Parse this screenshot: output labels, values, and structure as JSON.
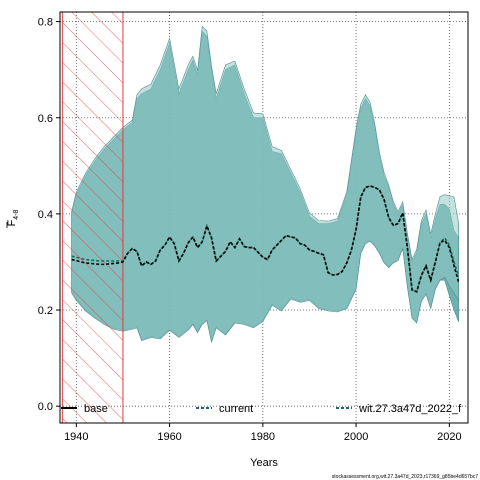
{
  "chart_data": {
    "type": "line",
    "xlabel": "Years",
    "ylabel": "F",
    "ylabel_sub": "4-8",
    "xlim": [
      1936.5,
      2024
    ],
    "ylim": [
      -0.035,
      0.82
    ],
    "x_ticks": [
      1940,
      1960,
      1980,
      2000,
      2020
    ],
    "y_ticks": [
      0.0,
      0.2,
      0.4,
      0.6,
      0.8
    ],
    "x_tick_labels": [
      "1940",
      "1960",
      "1980",
      "2000",
      "2020"
    ],
    "y_tick_labels": [
      "0.0",
      "0.2",
      "0.4",
      "0.6",
      "0.8"
    ],
    "grid": true,
    "shaded_period": {
      "start": 1937,
      "end": 1950,
      "style": "red-hatched"
    },
    "legend": {
      "placement": "bottom",
      "entries": [
        {
          "label": "base",
          "color": "#000000",
          "dash": "solid"
        },
        {
          "label": "current",
          "color": "#1f5c8a",
          "dash": "dashed"
        },
        {
          "label": "wit.27.3a47d_2022_f",
          "color": "#1b6b5a",
          "dash": "dashed"
        }
      ]
    },
    "colors": {
      "band_outer": "#5fa8a8",
      "band_inner": "#8fc9c4",
      "band_edge": "#4c8f8f",
      "hatch": "#e8383d"
    },
    "series": [
      {
        "name": "current",
        "x": [
          1939,
          1940,
          1941,
          1942,
          1943,
          1944,
          1945,
          1946,
          1947,
          1948,
          1949,
          1950,
          1951,
          1952,
          1953,
          1954,
          1955,
          1956,
          1957,
          1958,
          1959,
          1960,
          1961,
          1962,
          1963,
          1964,
          1965,
          1966,
          1967,
          1968,
          1969,
          1970,
          1971,
          1972,
          1973,
          1974,
          1975,
          1976,
          1977,
          1978,
          1979,
          1980,
          1981,
          1982,
          1983,
          1984,
          1985,
          1986,
          1987,
          1988,
          1989,
          1990,
          1991,
          1992,
          1993,
          1994,
          1995,
          1996,
          1997,
          1998,
          1999,
          2000,
          2001,
          2002,
          2003,
          2004,
          2005,
          2006,
          2007,
          2008,
          2009,
          2010,
          2011,
          2012,
          2013,
          2014,
          2015,
          2016,
          2017,
          2018,
          2019,
          2020,
          2021,
          2022
        ],
        "values": [
          0.305,
          0.303,
          0.3,
          0.298,
          0.297,
          0.296,
          0.295,
          0.295,
          0.296,
          0.297,
          0.298,
          0.3,
          0.318,
          0.328,
          0.322,
          0.292,
          0.3,
          0.295,
          0.302,
          0.325,
          0.335,
          0.352,
          0.338,
          0.302,
          0.318,
          0.34,
          0.352,
          0.33,
          0.342,
          0.375,
          0.35,
          0.302,
          0.312,
          0.322,
          0.342,
          0.33,
          0.348,
          0.332,
          0.33,
          0.33,
          0.32,
          0.31,
          0.305,
          0.325,
          0.335,
          0.345,
          0.355,
          0.352,
          0.35,
          0.338,
          0.335,
          0.325,
          0.322,
          0.318,
          0.315,
          0.278,
          0.273,
          0.274,
          0.28,
          0.298,
          0.325,
          0.368,
          0.435,
          0.455,
          0.458,
          0.455,
          0.45,
          0.43,
          0.392,
          0.376,
          0.38,
          0.402,
          0.33,
          0.242,
          0.238,
          0.272,
          0.292,
          0.262,
          0.3,
          0.34,
          0.345,
          0.33,
          0.292,
          0.258
        ]
      },
      {
        "name": "wit.27.3a47d_2022_f",
        "x": [
          1939,
          1940,
          1941,
          1942,
          1943,
          1944,
          1945,
          1946,
          1947,
          1948,
          1949,
          1950,
          1951,
          1952,
          1953,
          1954,
          1955,
          1956,
          1957,
          1958,
          1959,
          1960,
          1961,
          1962,
          1963,
          1964,
          1965,
          1966,
          1967,
          1968,
          1969,
          1970,
          1971,
          1972,
          1973,
          1974,
          1975,
          1976,
          1977,
          1978,
          1979,
          1980,
          1981,
          1982,
          1983,
          1984,
          1985,
          1986,
          1987,
          1988,
          1989,
          1990,
          1991,
          1992,
          1993,
          1994,
          1995,
          1996,
          1997,
          1998,
          1999,
          2000,
          2001,
          2002,
          2003,
          2004,
          2005,
          2006,
          2007,
          2008,
          2009,
          2010,
          2011,
          2012,
          2013,
          2014,
          2015,
          2016,
          2017,
          2018,
          2019,
          2020,
          2021,
          2022
        ],
        "values": [
          0.312,
          0.31,
          0.307,
          0.305,
          0.304,
          0.303,
          0.302,
          0.302,
          0.302,
          0.302,
          0.302,
          0.302,
          0.318,
          0.328,
          0.322,
          0.292,
          0.3,
          0.295,
          0.302,
          0.325,
          0.335,
          0.352,
          0.338,
          0.302,
          0.318,
          0.34,
          0.352,
          0.33,
          0.342,
          0.375,
          0.35,
          0.302,
          0.312,
          0.322,
          0.342,
          0.33,
          0.348,
          0.332,
          0.33,
          0.33,
          0.32,
          0.31,
          0.305,
          0.325,
          0.335,
          0.345,
          0.355,
          0.352,
          0.35,
          0.338,
          0.335,
          0.325,
          0.322,
          0.318,
          0.315,
          0.278,
          0.273,
          0.274,
          0.28,
          0.298,
          0.325,
          0.368,
          0.435,
          0.455,
          0.458,
          0.455,
          0.45,
          0.43,
          0.392,
          0.376,
          0.38,
          0.402,
          0.33,
          0.242,
          0.238,
          0.272,
          0.292,
          0.262,
          0.3,
          0.34,
          0.35,
          0.335,
          0.3,
          0.27
        ]
      }
    ],
    "bands": [
      {
        "name": "current",
        "x": [
          1939,
          1940,
          1942,
          1944,
          1946,
          1948,
          1950,
          1952,
          1953,
          1954,
          1956,
          1958,
          1960,
          1962,
          1964,
          1965,
          1966,
          1967,
          1968,
          1969,
          1970,
          1972,
          1974,
          1976,
          1978,
          1980,
          1982,
          1984,
          1986,
          1988,
          1990,
          1992,
          1994,
          1996,
          1998,
          2000,
          2001,
          2002,
          2003,
          2004,
          2005,
          2006,
          2007,
          2008,
          2009,
          2010,
          2011,
          2012,
          2013,
          2014,
          2015,
          2016,
          2017,
          2018,
          2019,
          2020,
          2021,
          2022
        ],
        "upper": [
          0.4,
          0.44,
          0.48,
          0.51,
          0.535,
          0.555,
          0.575,
          0.59,
          0.64,
          0.65,
          0.66,
          0.7,
          0.755,
          0.65,
          0.7,
          0.72,
          0.69,
          0.78,
          0.77,
          0.7,
          0.64,
          0.7,
          0.71,
          0.65,
          0.6,
          0.6,
          0.53,
          0.525,
          0.485,
          0.445,
          0.395,
          0.38,
          0.38,
          0.385,
          0.44,
          0.57,
          0.62,
          0.64,
          0.625,
          0.58,
          0.52,
          0.48,
          0.455,
          0.42,
          0.4,
          0.42,
          0.355,
          0.3,
          0.32,
          0.38,
          0.4,
          0.35,
          0.39,
          0.42,
          0.42,
          0.41,
          0.365,
          0.35
        ],
        "lower": [
          0.238,
          0.222,
          0.2,
          0.185,
          0.172,
          0.162,
          0.158,
          0.162,
          0.165,
          0.138,
          0.145,
          0.142,
          0.16,
          0.145,
          0.16,
          0.172,
          0.155,
          0.172,
          0.18,
          0.135,
          0.165,
          0.15,
          0.175,
          0.172,
          0.165,
          0.178,
          0.212,
          0.2,
          0.225,
          0.218,
          0.222,
          0.205,
          0.2,
          0.198,
          0.205,
          0.245,
          0.32,
          0.34,
          0.345,
          0.335,
          0.32,
          0.3,
          0.29,
          0.3,
          0.305,
          0.33,
          0.25,
          0.185,
          0.175,
          0.22,
          0.235,
          0.205,
          0.245,
          0.262,
          0.262,
          0.23,
          0.2,
          0.175
        ]
      },
      {
        "name": "wit.27.3a47d_2022_f",
        "x": [
          1939,
          1940,
          1942,
          1944,
          1946,
          1948,
          1950,
          1952,
          1953,
          1954,
          1956,
          1958,
          1960,
          1962,
          1964,
          1965,
          1966,
          1967,
          1968,
          1969,
          1970,
          1972,
          1974,
          1976,
          1978,
          1980,
          1982,
          1984,
          1986,
          1988,
          1990,
          1992,
          1994,
          1996,
          1998,
          2000,
          2001,
          2002,
          2003,
          2004,
          2005,
          2006,
          2007,
          2008,
          2009,
          2010,
          2011,
          2012,
          2013,
          2014,
          2015,
          2016,
          2017,
          2018,
          2019,
          2020,
          2021,
          2022
        ],
        "upper": [
          0.405,
          0.445,
          0.485,
          0.515,
          0.54,
          0.56,
          0.58,
          0.595,
          0.648,
          0.66,
          0.67,
          0.71,
          0.765,
          0.66,
          0.71,
          0.728,
          0.698,
          0.79,
          0.78,
          0.708,
          0.65,
          0.71,
          0.718,
          0.66,
          0.61,
          0.608,
          0.54,
          0.532,
          0.492,
          0.452,
          0.402,
          0.386,
          0.385,
          0.39,
          0.446,
          0.578,
          0.628,
          0.648,
          0.632,
          0.588,
          0.528,
          0.486,
          0.46,
          0.425,
          0.405,
          0.425,
          0.36,
          0.305,
          0.326,
          0.386,
          0.408,
          0.358,
          0.4,
          0.436,
          0.44,
          0.438,
          0.435,
          0.38
        ],
        "lower": [
          0.235,
          0.22,
          0.198,
          0.183,
          0.17,
          0.16,
          0.156,
          0.16,
          0.163,
          0.136,
          0.143,
          0.14,
          0.158,
          0.143,
          0.158,
          0.17,
          0.153,
          0.17,
          0.178,
          0.133,
          0.163,
          0.148,
          0.173,
          0.17,
          0.163,
          0.176,
          0.21,
          0.198,
          0.223,
          0.216,
          0.22,
          0.203,
          0.198,
          0.196,
          0.203,
          0.243,
          0.318,
          0.338,
          0.343,
          0.333,
          0.318,
          0.298,
          0.288,
          0.298,
          0.303,
          0.328,
          0.248,
          0.183,
          0.173,
          0.218,
          0.233,
          0.203,
          0.243,
          0.262,
          0.268,
          0.25,
          0.235,
          0.22
        ]
      }
    ]
  },
  "footer": {
    "text": "stockassessment.org,wit.27.3a47d_2023,r17369_g85be4d657bc7"
  }
}
